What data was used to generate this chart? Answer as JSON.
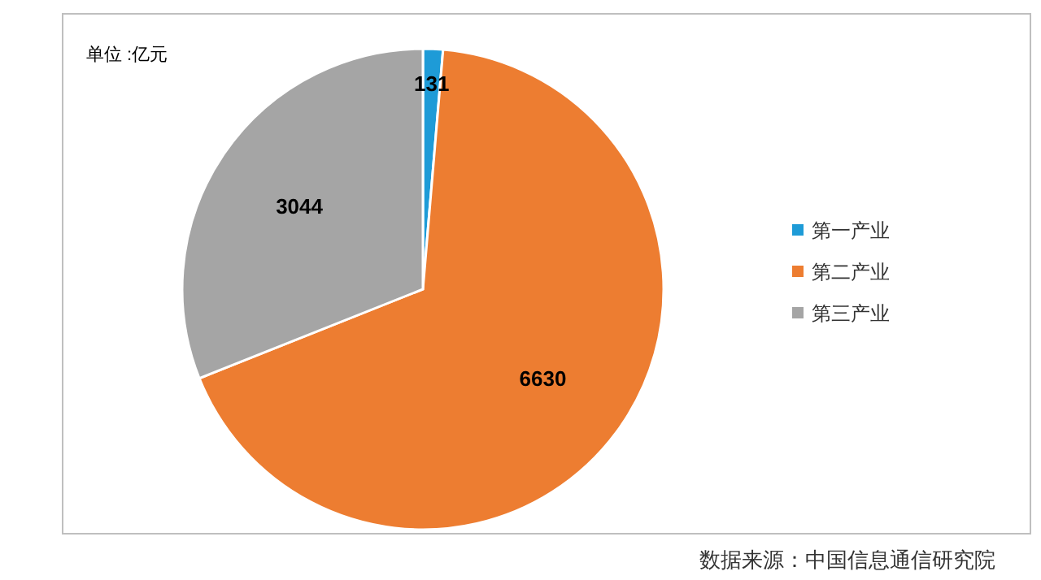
{
  "chart_data": {
    "type": "pie",
    "categories": [
      "第一产业",
      "第二产业",
      "第三产业"
    ],
    "values": [
      131,
      6630,
      3044
    ],
    "colors": [
      "#1e9bd7",
      "#ed7d31",
      "#a5a5a5"
    ],
    "data_labels": true,
    "legend": "right",
    "annotations": [
      "单位 :亿元",
      "数据来源：中国信息通信研究院"
    ]
  }
}
